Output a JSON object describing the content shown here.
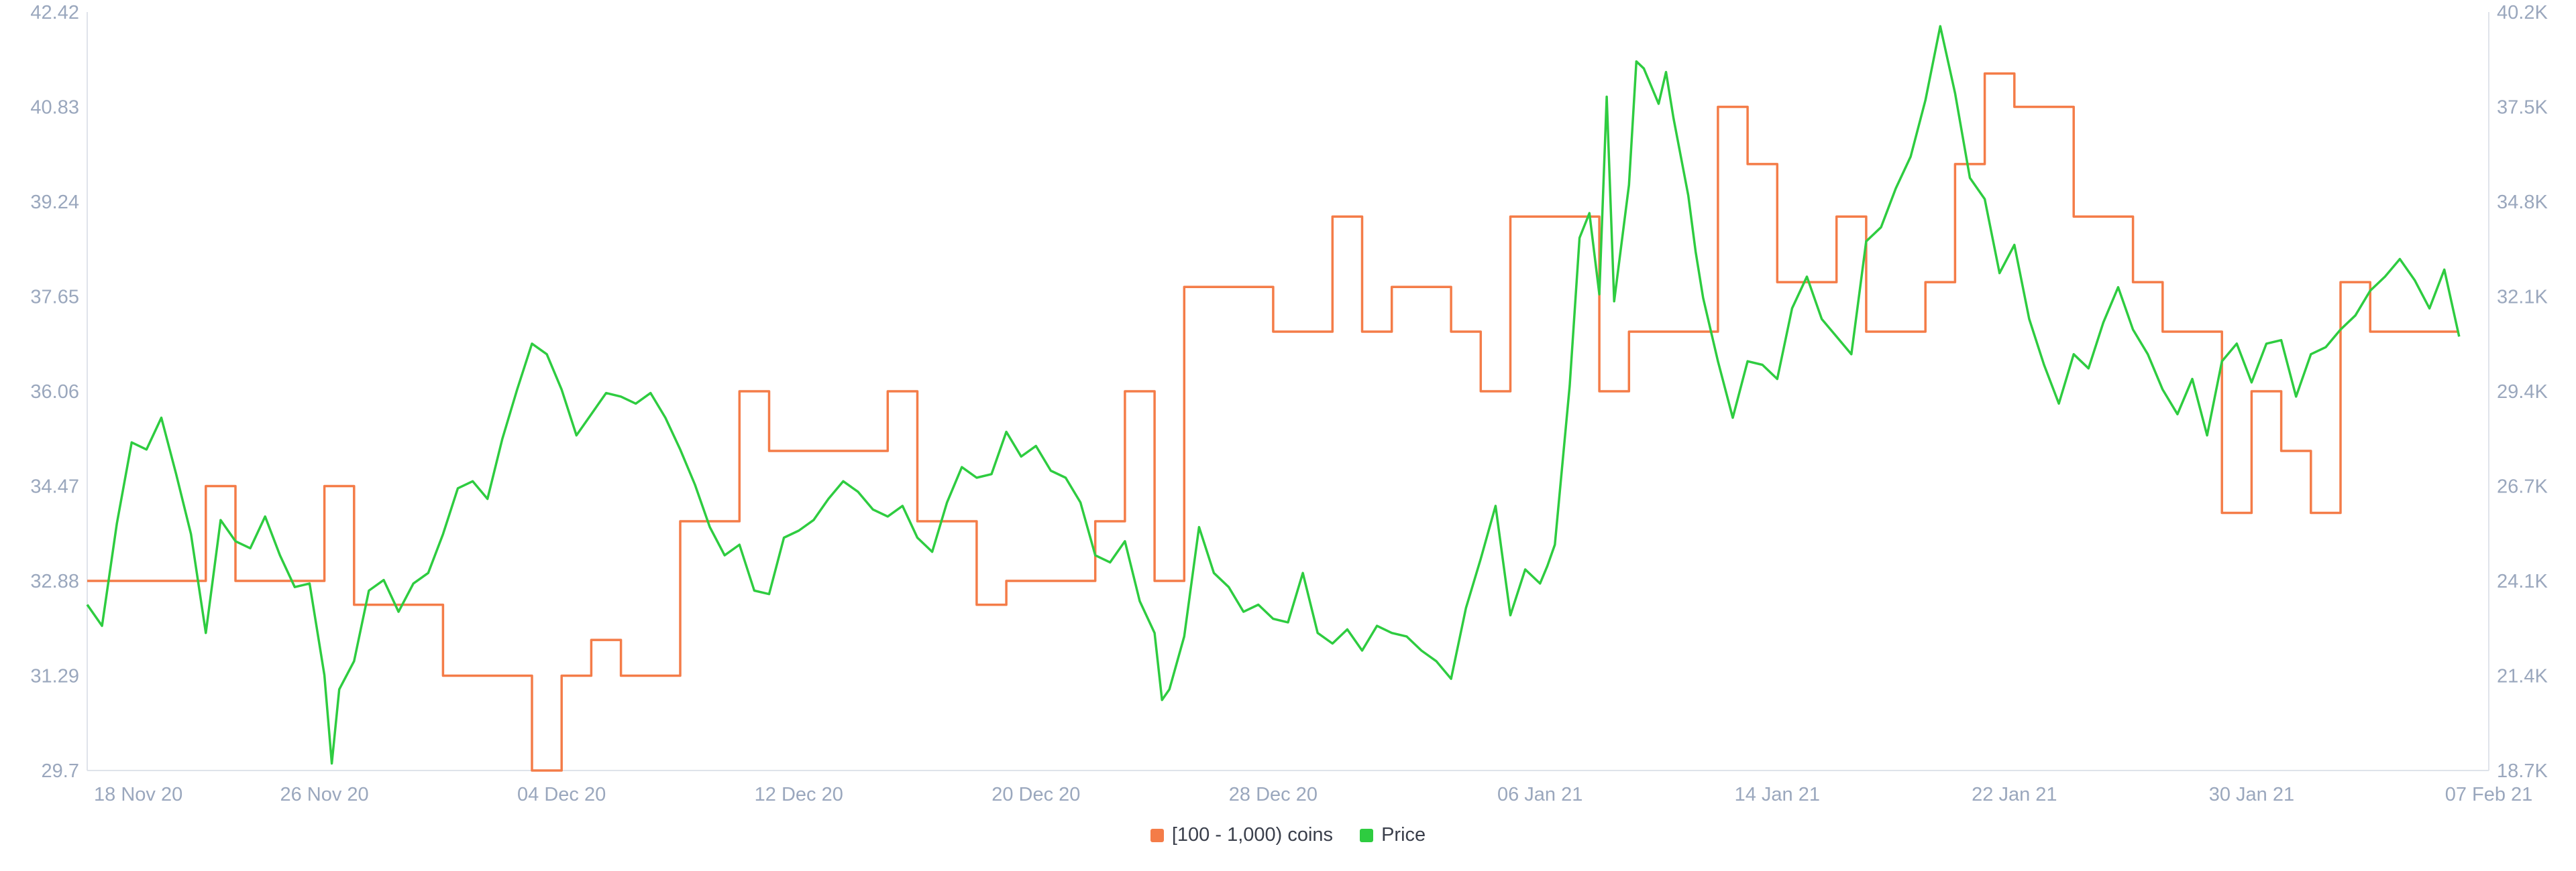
{
  "colors": {
    "holders": "#f47c48",
    "price": "#2ecc40",
    "axis": "#dfe3ea",
    "tick": "#9aa7bd",
    "background": "#ffffff"
  },
  "legend": {
    "holders_label": "[100 - 1,000) coins",
    "price_label": "Price"
  },
  "chart_data": {
    "type": "line",
    "title": "",
    "xlabel": "",
    "ylabel_left": "",
    "ylabel_right": "",
    "x_tick_labels": [
      "18 Nov 20",
      "26 Nov 20",
      "04 Dec 20",
      "12 Dec 20",
      "20 Dec 20",
      "28 Dec 20",
      "06 Jan 21",
      "14 Jan 21",
      "22 Jan 21",
      "30 Jan 21",
      "07 Feb 21"
    ],
    "x_ticks": [
      "2020-11-18",
      "2020-11-26",
      "2020-12-04",
      "2020-12-12",
      "2020-12-20",
      "2020-12-28",
      "2021-01-06",
      "2021-01-14",
      "2021-01-22",
      "2021-01-30",
      "2021-02-07"
    ],
    "xlim": [
      "2020-11-18",
      "2021-02-07"
    ],
    "y_left_ticks": [
      "29.7",
      "31.29",
      "32.88",
      "34.47",
      "36.06",
      "37.65",
      "39.24",
      "40.83",
      "42.42"
    ],
    "y_left_range": [
      29.7,
      42.42
    ],
    "y_right_ticks": [
      "18.7K",
      "21.4K",
      "24.1K",
      "26.7K",
      "29.4K",
      "32.1K",
      "34.8K",
      "37.5K",
      "40.2K"
    ],
    "y_right_range": [
      18700,
      40200
    ],
    "grid": false,
    "legend_position": "bottom-center",
    "series": [
      {
        "name": "[100 - 1,000) coins",
        "axis": "left",
        "step": true,
        "points": [
          [
            "2020-11-18",
            32.88
          ],
          [
            "2020-11-22",
            34.47
          ],
          [
            "2020-11-23",
            32.88
          ],
          [
            "2020-11-26",
            34.47
          ],
          [
            "2020-11-27",
            32.48
          ],
          [
            "2020-11-30",
            31.29
          ],
          [
            "2020-12-03",
            29.7
          ],
          [
            "2020-12-04",
            31.29
          ],
          [
            "2020-12-05",
            31.89
          ],
          [
            "2020-12-06",
            31.29
          ],
          [
            "2020-12-08",
            33.88
          ],
          [
            "2020-12-10",
            36.06
          ],
          [
            "2020-12-11",
            35.06
          ],
          [
            "2020-12-15",
            36.06
          ],
          [
            "2020-12-16",
            33.88
          ],
          [
            "2020-12-18",
            32.48
          ],
          [
            "2020-12-19",
            32.88
          ],
          [
            "2020-12-22",
            33.88
          ],
          [
            "2020-12-23",
            36.06
          ],
          [
            "2020-12-24",
            32.88
          ],
          [
            "2020-12-25",
            37.81
          ],
          [
            "2020-12-28",
            37.06
          ],
          [
            "2020-12-30",
            38.99
          ],
          [
            "2020-12-31",
            37.06
          ],
          [
            "2021-01-01",
            37.81
          ],
          [
            "2021-01-03",
            37.06
          ],
          [
            "2021-01-04",
            36.06
          ],
          [
            "2021-01-05",
            38.99
          ],
          [
            "2021-01-08",
            36.06
          ],
          [
            "2021-01-09",
            37.06
          ],
          [
            "2021-01-12",
            40.83
          ],
          [
            "2021-01-13",
            39.87
          ],
          [
            "2021-01-14",
            37.89
          ],
          [
            "2021-01-16",
            38.99
          ],
          [
            "2021-01-17",
            37.06
          ],
          [
            "2021-01-19",
            37.89
          ],
          [
            "2021-01-20",
            39.87
          ],
          [
            "2021-01-21",
            41.39
          ],
          [
            "2021-01-22",
            40.83
          ],
          [
            "2021-01-24",
            38.99
          ],
          [
            "2021-01-26",
            37.89
          ],
          [
            "2021-01-27",
            37.06
          ],
          [
            "2021-01-29",
            34.02
          ],
          [
            "2021-01-30",
            36.06
          ],
          [
            "2021-01-31",
            35.06
          ],
          [
            "2021-02-01",
            34.02
          ],
          [
            "2021-02-02",
            37.89
          ],
          [
            "2021-02-03",
            37.06
          ],
          [
            "2021-02-06",
            37.06
          ]
        ]
      },
      {
        "name": "Price",
        "axis": "right",
        "step": false,
        "points": [
          [
            "2020-11-18",
            23400
          ],
          [
            "2020-11-18T12:00",
            22800
          ],
          [
            "2020-11-19",
            25700
          ],
          [
            "2020-11-19T12:00",
            28000
          ],
          [
            "2020-11-20",
            27800
          ],
          [
            "2020-11-20T12:00",
            28700
          ],
          [
            "2020-11-21",
            27100
          ],
          [
            "2020-11-21T12:00",
            25400
          ],
          [
            "2020-11-22",
            22600
          ],
          [
            "2020-11-22T12:00",
            25800
          ],
          [
            "2020-11-23",
            25200
          ],
          [
            "2020-11-23T12:00",
            25000
          ],
          [
            "2020-11-24",
            25900
          ],
          [
            "2020-11-24T12:00",
            24800
          ],
          [
            "2020-11-25",
            23900
          ],
          [
            "2020-11-25T12:00",
            24000
          ],
          [
            "2020-11-26",
            21400
          ],
          [
            "2020-11-26T06:00",
            18900
          ],
          [
            "2020-11-26T12:00",
            21000
          ],
          [
            "2020-11-27",
            21800
          ],
          [
            "2020-11-27T12:00",
            23800
          ],
          [
            "2020-11-28",
            24100
          ],
          [
            "2020-11-28T12:00",
            23200
          ],
          [
            "2020-11-29",
            24000
          ],
          [
            "2020-11-29T12:00",
            24300
          ],
          [
            "2020-11-30",
            25400
          ],
          [
            "2020-11-30T12:00",
            26700
          ],
          [
            "2020-12-01",
            26900
          ],
          [
            "2020-12-01T12:00",
            26400
          ],
          [
            "2020-12-02",
            28100
          ],
          [
            "2020-12-02T12:00",
            29500
          ],
          [
            "2020-12-03",
            30800
          ],
          [
            "2020-12-03T12:00",
            30500
          ],
          [
            "2020-12-04",
            29500
          ],
          [
            "2020-12-04T12:00",
            28200
          ],
          [
            "2020-12-05",
            28800
          ],
          [
            "2020-12-05T12:00",
            29400
          ],
          [
            "2020-12-06",
            29300
          ],
          [
            "2020-12-06T12:00",
            29100
          ],
          [
            "2020-12-07",
            29400
          ],
          [
            "2020-12-07T12:00",
            28700
          ],
          [
            "2020-12-08",
            27800
          ],
          [
            "2020-12-08T12:00",
            26800
          ],
          [
            "2020-12-09",
            25600
          ],
          [
            "2020-12-09T12:00",
            24800
          ],
          [
            "2020-12-10",
            25100
          ],
          [
            "2020-12-10T12:00",
            23800
          ],
          [
            "2020-12-11",
            23700
          ],
          [
            "2020-12-11T12:00",
            25300
          ],
          [
            "2020-12-12",
            25500
          ],
          [
            "2020-12-12T12:00",
            25800
          ],
          [
            "2020-12-13",
            26400
          ],
          [
            "2020-12-13T12:00",
            26900
          ],
          [
            "2020-12-14",
            26600
          ],
          [
            "2020-12-14T12:00",
            26100
          ],
          [
            "2020-12-15",
            25900
          ],
          [
            "2020-12-15T12:00",
            26200
          ],
          [
            "2020-12-16",
            25300
          ],
          [
            "2020-12-16T12:00",
            24900
          ],
          [
            "2020-12-17",
            26300
          ],
          [
            "2020-12-17T12:00",
            27300
          ],
          [
            "2020-12-18",
            27000
          ],
          [
            "2020-12-18T12:00",
            27100
          ],
          [
            "2020-12-19",
            28300
          ],
          [
            "2020-12-19T12:00",
            27600
          ],
          [
            "2020-12-20",
            27900
          ],
          [
            "2020-12-20T12:00",
            27200
          ],
          [
            "2020-12-21",
            27000
          ],
          [
            "2020-12-21T12:00",
            26300
          ],
          [
            "2020-12-22",
            24800
          ],
          [
            "2020-12-22T12:00",
            24600
          ],
          [
            "2020-12-23",
            25200
          ],
          [
            "2020-12-23T12:00",
            23500
          ],
          [
            "2020-12-24",
            22600
          ],
          [
            "2020-12-24T06:00",
            20700
          ],
          [
            "2020-12-24T12:00",
            21000
          ],
          [
            "2020-12-25",
            22500
          ],
          [
            "2020-12-25T12:00",
            25600
          ],
          [
            "2020-12-26",
            24300
          ],
          [
            "2020-12-26T12:00",
            23900
          ],
          [
            "2020-12-27",
            23200
          ],
          [
            "2020-12-27T12:00",
            23400
          ],
          [
            "2020-12-28",
            23000
          ],
          [
            "2020-12-28T12:00",
            22900
          ],
          [
            "2020-12-29",
            24300
          ],
          [
            "2020-12-29T12:00",
            22600
          ],
          [
            "2020-12-30",
            22300
          ],
          [
            "2020-12-30T12:00",
            22700
          ],
          [
            "2020-12-31",
            22100
          ],
          [
            "2020-12-31T12:00",
            22800
          ],
          [
            "2021-01-01",
            22600
          ],
          [
            "2021-01-01T12:00",
            22500
          ],
          [
            "2021-01-02",
            22100
          ],
          [
            "2021-01-02T12:00",
            21800
          ],
          [
            "2021-01-03",
            21300
          ],
          [
            "2021-01-03T12:00",
            23300
          ],
          [
            "2021-01-04",
            24700
          ],
          [
            "2021-01-04T12:00",
            26200
          ],
          [
            "2021-01-05",
            23100
          ],
          [
            "2021-01-05T12:00",
            24400
          ],
          [
            "2021-01-06",
            24000
          ],
          [
            "2021-01-06T06:00",
            24500
          ],
          [
            "2021-01-06T12:00",
            25100
          ],
          [
            "2021-01-07",
            29600
          ],
          [
            "2021-01-07T08:00",
            33800
          ],
          [
            "2021-01-07T16:00",
            34500
          ],
          [
            "2021-01-08",
            32200
          ],
          [
            "2021-01-08T06:00",
            37800
          ],
          [
            "2021-01-08T12:00",
            32000
          ],
          [
            "2021-01-09",
            35300
          ],
          [
            "2021-01-09T06:00",
            38800
          ],
          [
            "2021-01-09T12:00",
            38600
          ],
          [
            "2021-01-10",
            37600
          ],
          [
            "2021-01-10T06:00",
            38500
          ],
          [
            "2021-01-10T12:00",
            37200
          ],
          [
            "2021-01-11",
            35000
          ],
          [
            "2021-01-11T06:00",
            33400
          ],
          [
            "2021-01-11T12:00",
            32100
          ],
          [
            "2021-01-12",
            30300
          ],
          [
            "2021-01-12T12:00",
            28700
          ],
          [
            "2021-01-13",
            30300
          ],
          [
            "2021-01-13T12:00",
            30200
          ],
          [
            "2021-01-14",
            29800
          ],
          [
            "2021-01-14T12:00",
            31800
          ],
          [
            "2021-01-15",
            32700
          ],
          [
            "2021-01-15T12:00",
            31500
          ],
          [
            "2021-01-16",
            31000
          ],
          [
            "2021-01-16T12:00",
            30500
          ],
          [
            "2021-01-17",
            33700
          ],
          [
            "2021-01-17T12:00",
            34100
          ],
          [
            "2021-01-18",
            35200
          ],
          [
            "2021-01-18T12:00",
            36100
          ],
          [
            "2021-01-19",
            37700
          ],
          [
            "2021-01-19T12:00",
            39800
          ],
          [
            "2021-01-20",
            37900
          ],
          [
            "2021-01-20T12:00",
            35500
          ],
          [
            "2021-01-21",
            34900
          ],
          [
            "2021-01-21T12:00",
            32800
          ],
          [
            "2021-01-22",
            33600
          ],
          [
            "2021-01-22T12:00",
            31500
          ],
          [
            "2021-01-23",
            30200
          ],
          [
            "2021-01-23T12:00",
            29100
          ],
          [
            "2021-01-24",
            30500
          ],
          [
            "2021-01-24T12:00",
            30100
          ],
          [
            "2021-01-25",
            31400
          ],
          [
            "2021-01-25T12:00",
            32400
          ],
          [
            "2021-01-26",
            31200
          ],
          [
            "2021-01-26T12:00",
            30500
          ],
          [
            "2021-01-27",
            29500
          ],
          [
            "2021-01-27T12:00",
            28800
          ],
          [
            "2021-01-28",
            29800
          ],
          [
            "2021-01-28T12:00",
            28200
          ],
          [
            "2021-01-29",
            30300
          ],
          [
            "2021-01-29T12:00",
            30800
          ],
          [
            "2021-01-30",
            29700
          ],
          [
            "2021-01-30T12:00",
            30800
          ],
          [
            "2021-01-31",
            30900
          ],
          [
            "2021-01-31T12:00",
            29300
          ],
          [
            "2021-02-01",
            30500
          ],
          [
            "2021-02-01T12:00",
            30700
          ],
          [
            "2021-02-02",
            31200
          ],
          [
            "2021-02-02T12:00",
            31600
          ],
          [
            "2021-02-03",
            32300
          ],
          [
            "2021-02-03T12:00",
            32700
          ],
          [
            "2021-02-04",
            33200
          ],
          [
            "2021-02-04T12:00",
            32600
          ],
          [
            "2021-02-05",
            31800
          ],
          [
            "2021-02-05T12:00",
            32900
          ],
          [
            "2021-02-06",
            31000
          ]
        ]
      }
    ]
  }
}
